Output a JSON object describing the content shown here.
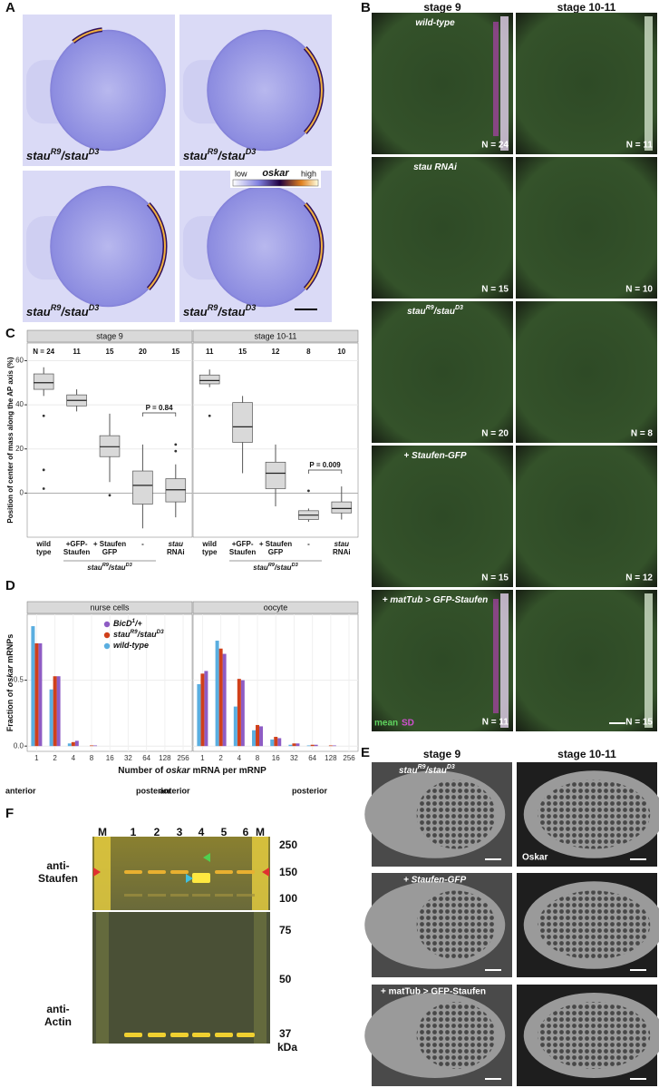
{
  "panel_letters": [
    "A",
    "B",
    "C",
    "D",
    "E",
    "F"
  ],
  "genotype": [
    "stau",
    "R9",
    "/stau",
    "D3"
  ],
  "panel_a": {
    "colorbar": [
      "low",
      "oskar",
      "high"
    ]
  },
  "panel_b": {
    "columns": [
      "stage 9",
      "stage 10-11"
    ],
    "rows": [
      {
        "label": [
          "wild-type"
        ],
        "n": [
          {
            "value": 24,
            "label": "N = 24"
          },
          {
            "value": 11,
            "label": "N = 11"
          }
        ]
      },
      {
        "label": [
          "stau RNAi"
        ],
        "n": [
          {
            "value": 15,
            "label": "N = 15"
          },
          {
            "value": 10,
            "label": "N = 10"
          }
        ]
      },
      {
        "label": [
          "stau",
          "R9",
          "/stau",
          "D3"
        ],
        "n": [
          {
            "value": 20,
            "label": "N = 20"
          },
          {
            "value": 8,
            "label": "N = 8"
          }
        ]
      },
      {
        "label": [
          "+ Staufen-GFP"
        ],
        "n": [
          {
            "value": 15,
            "label": "N = 15"
          },
          {
            "value": 12,
            "label": "N = 12"
          }
        ]
      },
      {
        "label": [
          "+ matTub > GFP-Staufen"
        ],
        "n": [
          {
            "value": 11,
            "label": "N = 11"
          },
          {
            "value": 15,
            "label": "N = 15"
          }
        ]
      }
    ],
    "legend": [
      {
        "name": "mean",
        "color": "#5fd35f"
      },
      {
        "name": "SD",
        "color": "#d04fd0"
      }
    ]
  },
  "chart_data": [
    {
      "type": "box",
      "y_label": "Position of center of mass along the AP axis (%)",
      "categories": [
        [
          "wild",
          "type"
        ],
        [
          "+GFP-",
          "Staufen"
        ],
        [
          "+ Staufen",
          "GFP"
        ],
        [
          "-"
        ],
        [
          "stau",
          "RNAi"
        ]
      ],
      "group_label": [
        "stau",
        "R9",
        "/stau",
        "D3"
      ],
      "ylim": [
        -20,
        68
      ],
      "yticks": [
        0,
        20,
        40,
        60
      ],
      "grid": true,
      "color": "#d9d9d9",
      "facets": [
        {
          "title": "stage 9",
          "n": [
            {
              "value": 24,
              "label": "N = 24"
            },
            11,
            15,
            20,
            15
          ],
          "p_label": "P = 0.84",
          "boxes": [
            {
              "low": 44,
              "q1": 47,
              "median": 50,
              "q3": 54,
              "high": 57,
              "outliers": [
                35,
                10.5,
                2
              ]
            },
            {
              "low": 37,
              "q1": 39.5,
              "median": 42,
              "q3": 44.5,
              "high": 47,
              "outliers": []
            },
            {
              "low": 5,
              "q1": 16.5,
              "median": 21,
              "q3": 26,
              "high": 36,
              "outliers": [
                -1
              ]
            },
            {
              "low": -16,
              "q1": -5,
              "median": 3.5,
              "q3": 10,
              "high": 22,
              "outliers": []
            },
            {
              "low": -11,
              "q1": -4,
              "median": 1.5,
              "q3": 6.5,
              "high": 13,
              "outliers": [
                22,
                19
              ]
            }
          ]
        },
        {
          "title": "stage 10-11",
          "n": [
            11,
            15,
            12,
            8,
            10
          ],
          "p_label": "P = 0.009",
          "boxes": [
            {
              "low": 48,
              "q1": 49.5,
              "median": 51,
              "q3": 53.5,
              "high": 56,
              "outliers": [
                35
              ]
            },
            {
              "low": 9,
              "q1": 23,
              "median": 30,
              "q3": 41,
              "high": 44,
              "outliers": []
            },
            {
              "low": -6,
              "q1": 2,
              "median": 9,
              "q3": 14,
              "high": 22,
              "outliers": []
            },
            {
              "low": -13,
              "q1": -12,
              "median": -10,
              "q3": -8,
              "high": -7,
              "outliers": [
                1
              ]
            },
            {
              "low": -12,
              "q1": -9,
              "median": -7,
              "q3": -4,
              "high": 3,
              "outliers": []
            }
          ]
        }
      ]
    },
    {
      "type": "bar",
      "y_label": [
        "Fraction of ",
        "oskar",
        " mRNPs"
      ],
      "x_label": [
        "Number of ",
        "oskar",
        " mRNA per mRNP"
      ],
      "x": [
        1,
        2,
        4,
        8,
        16,
        32,
        64,
        128,
        256
      ],
      "xscale": "log",
      "xlim": [
        0.7,
        360
      ],
      "ylim": [
        -0.04,
        1.0
      ],
      "yticks": [
        {
          "value": 0,
          "label": "0.0"
        },
        {
          "value": 0.5,
          "label": "0.5"
        }
      ],
      "grid": true,
      "position_labels": [
        "anterior",
        "posterior"
      ],
      "series": [
        {
          "name": [
            "BicD",
            "1",
            "/+"
          ],
          "color": "#8e5cc4"
        },
        {
          "name": [
            "stau",
            "R9",
            "/stau",
            "D3"
          ],
          "color": "#d0401a"
        },
        {
          "name": [
            "wild-type"
          ],
          "color": "#5aaee0"
        }
      ],
      "facets": [
        {
          "title": "nurse cells",
          "values": [
            [
              0.78,
              0.53,
              0.04,
              0.005,
              0,
              0,
              0,
              0,
              0
            ],
            [
              0.78,
              0.53,
              0.03,
              0.005,
              0,
              0,
              0,
              0,
              0
            ],
            [
              0.91,
              0.43,
              0.02,
              0,
              0,
              0,
              0,
              0,
              0
            ]
          ]
        },
        {
          "title": "oocyte",
          "values": [
            [
              0.57,
              0.7,
              0.5,
              0.15,
              0.06,
              0.02,
              0.01,
              0.005,
              0
            ],
            [
              0.55,
              0.74,
              0.51,
              0.16,
              0.07,
              0.02,
              0.01,
              0.005,
              0
            ],
            [
              0.47,
              0.8,
              0.3,
              0.12,
              0.05,
              0.01,
              0.005,
              0,
              0
            ]
          ]
        }
      ]
    }
  ],
  "panel_e": {
    "columns": [
      "stage 9",
      "stage 10-11"
    ],
    "labels": [
      "+ Staufen-GFP",
      "+ matTub > GFP-Staufen"
    ],
    "stain": "Oskar"
  },
  "panel_f": {
    "lanes": [
      "M",
      "1",
      "2",
      "3",
      "4",
      "5",
      "6",
      "M"
    ],
    "markers": [
      250,
      150,
      100,
      75,
      50,
      37
    ],
    "unit": "kDa",
    "antibodies": [
      [
        "anti-",
        "Staufen"
      ],
      [
        "anti-",
        "Actin"
      ]
    ]
  }
}
